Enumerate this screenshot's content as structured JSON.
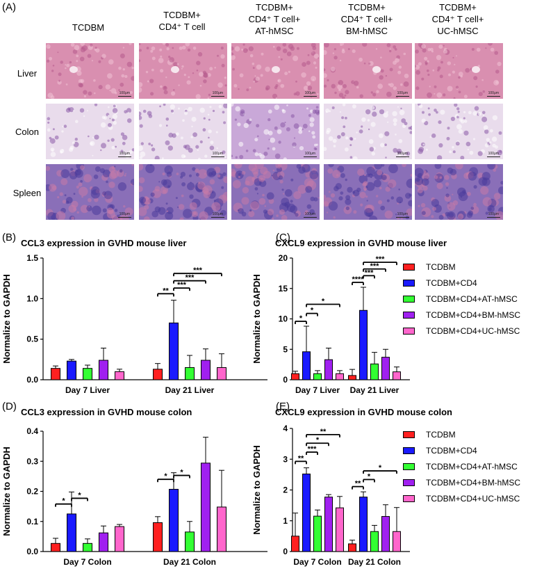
{
  "panel_labels": {
    "A": "(A)",
    "B": "(B)",
    "C": "(C)",
    "D": "(D)",
    "E": "(E)"
  },
  "histology": {
    "columns": [
      "TCDBM",
      "TCDBM+\nCD4⁺ T cell",
      "TCDBM+\nCD4⁺ T cell+\nAT-hMSC",
      "TCDBM+\nCD4⁺ T cell+\nBM-hMSC",
      "TCDBM+\nCD4⁺ T cell+\nUC-hMSC"
    ],
    "rows": [
      "Liver",
      "Colon",
      "Spleen"
    ],
    "scale_label": "100μm"
  },
  "colors": {
    "TCDBM": "#ff2020",
    "TCDBM+CD4": "#1a1aff",
    "TCDBM+CD4+AT-hMSC": "#33ff33",
    "TCDBM+CD4+BM-hMSC": "#a020f0",
    "TCDBM+CD4+UC-hMSC": "#ff66cc",
    "liver_tissue": "#d98fb0",
    "colon_tissue": "#c9a8d8",
    "spleen_tissue": "#8a6fb8"
  },
  "legend": [
    "TCDBM",
    "TCDBM+CD4",
    "TCDBM+CD4+AT-hMSC",
    "TCDBM+CD4+BM-hMSC",
    "TCDBM+CD4+UC-hMSC"
  ],
  "chart_data": [
    {
      "id": "B",
      "type": "bar",
      "title": "CCL3 expression in GVHD mouse liver",
      "ylabel": "Normalize to GAPDH",
      "ylim": [
        0,
        1.5
      ],
      "yticks": [
        "0.0",
        "0.5",
        "1.0",
        "1.5"
      ],
      "categories": [
        "Day 7 Liver",
        "Day 21 Liver"
      ],
      "series": [
        {
          "name": "TCDBM",
          "values": [
            0.14,
            0.13
          ],
          "errors": [
            0.03,
            0.07
          ]
        },
        {
          "name": "TCDBM+CD4",
          "values": [
            0.23,
            0.7
          ],
          "errors": [
            0.02,
            0.28
          ]
        },
        {
          "name": "TCDBM+CD4+AT-hMSC",
          "values": [
            0.14,
            0.15
          ],
          "errors": [
            0.04,
            0.15
          ]
        },
        {
          "name": "TCDBM+CD4+BM-hMSC",
          "values": [
            0.24,
            0.24
          ],
          "errors": [
            0.15,
            0.14
          ]
        },
        {
          "name": "TCDBM+CD4+UC-hMSC",
          "values": [
            0.1,
            0.15
          ],
          "errors": [
            0.03,
            0.17
          ]
        }
      ],
      "annotations": [
        {
          "group": 1,
          "from": 0,
          "to": 1,
          "text": "**",
          "level": 1.06
        },
        {
          "group": 1,
          "from": 1,
          "to": 2,
          "text": "***",
          "level": 1.13
        },
        {
          "group": 1,
          "from": 1,
          "to": 3,
          "text": "***",
          "level": 1.22
        },
        {
          "group": 1,
          "from": 1,
          "to": 4,
          "text": "***",
          "level": 1.31
        }
      ]
    },
    {
      "id": "C",
      "type": "bar",
      "title": "CXCL9 expression in GVHD mouse liver",
      "ylabel": "Normalize to GAPDH",
      "ylim": [
        0,
        20
      ],
      "yticks": [
        "0",
        "5",
        "10",
        "15",
        "20"
      ],
      "categories": [
        "Day 7 Liver",
        "Day 21 Liver"
      ],
      "series": [
        {
          "name": "TCDBM",
          "values": [
            1.0,
            0.7
          ],
          "errors": [
            0.4,
            1.0
          ]
        },
        {
          "name": "TCDBM+CD4",
          "values": [
            4.6,
            11.4
          ],
          "errors": [
            4.2,
            3.8
          ]
        },
        {
          "name": "TCDBM+CD4+AT-hMSC",
          "values": [
            1.0,
            2.6
          ],
          "errors": [
            0.5,
            1.9
          ]
        },
        {
          "name": "TCDBM+CD4+BM-hMSC",
          "values": [
            3.3,
            3.7
          ],
          "errors": [
            1.9,
            1.3
          ]
        },
        {
          "name": "TCDBM+CD4+UC-hMSC",
          "values": [
            1.0,
            1.3
          ],
          "errors": [
            0.5,
            0.8
          ]
        }
      ],
      "annotations": [
        {
          "group": 0,
          "from": 0,
          "to": 1,
          "text": "*",
          "level": 9.6
        },
        {
          "group": 0,
          "from": 1,
          "to": 2,
          "text": "*",
          "level": 10.9
        },
        {
          "group": 0,
          "from": 1,
          "to": 4,
          "text": "*",
          "level": 12.4
        },
        {
          "group": 1,
          "from": 0,
          "to": 1,
          "text": "****",
          "level": 16.0
        },
        {
          "group": 1,
          "from": 1,
          "to": 2,
          "text": "***",
          "level": 17.1
        },
        {
          "group": 1,
          "from": 1,
          "to": 3,
          "text": "***",
          "level": 18.2
        },
        {
          "group": 1,
          "from": 1,
          "to": 4,
          "text": "***",
          "level": 19.3
        }
      ]
    },
    {
      "id": "D",
      "type": "bar",
      "title": "CCL3 expression in GVHD mouse colon",
      "ylabel": "Normalize to GAPDH",
      "ylim": [
        0,
        0.4
      ],
      "yticks": [
        "0.0",
        "0.1",
        "0.2",
        "0.3",
        "0.4"
      ],
      "categories": [
        "Day 7 Colon",
        "Day 21 Colon"
      ],
      "series": [
        {
          "name": "TCDBM",
          "values": [
            0.027,
            0.096
          ],
          "errors": [
            0.017,
            0.02
          ]
        },
        {
          "name": "TCDBM+CD4",
          "values": [
            0.125,
            0.207
          ],
          "errors": [
            0.073,
            0.055
          ]
        },
        {
          "name": "TCDBM+CD4+AT-hMSC",
          "values": [
            0.027,
            0.065
          ],
          "errors": [
            0.015,
            0.035
          ]
        },
        {
          "name": "TCDBM+CD4+BM-hMSC",
          "values": [
            0.062,
            0.294
          ],
          "errors": [
            0.023,
            0.086
          ]
        },
        {
          "name": "TCDBM+CD4+UC-hMSC",
          "values": [
            0.083,
            0.148
          ],
          "errors": [
            0.007,
            0.122
          ]
        }
      ],
      "annotations": [
        {
          "group": 0,
          "from": 0,
          "to": 1,
          "text": "*",
          "level": 0.158
        },
        {
          "group": 0,
          "from": 1,
          "to": 2,
          "text": "*",
          "level": 0.177
        },
        {
          "group": 1,
          "from": 0,
          "to": 1,
          "text": "*",
          "level": 0.24
        },
        {
          "group": 1,
          "from": 1,
          "to": 2,
          "text": "*",
          "level": 0.253
        }
      ]
    },
    {
      "id": "E",
      "type": "bar",
      "title": "CXCL9 expression in GVHD mouse colon",
      "ylabel": "Normalize to GAPDH",
      "ylim": [
        0,
        4
      ],
      "yticks": [
        "0",
        "1",
        "2",
        "3",
        "4"
      ],
      "categories": [
        "Day 7 Colon",
        "Day 21 Colon"
      ],
      "series": [
        {
          "name": "TCDBM",
          "values": [
            0.5,
            0.25
          ],
          "errors": [
            0.75,
            0.12
          ]
        },
        {
          "name": "TCDBM+CD4",
          "values": [
            2.52,
            1.77
          ],
          "errors": [
            0.2,
            0.17
          ]
        },
        {
          "name": "TCDBM+CD4+AT-hMSC",
          "values": [
            1.15,
            0.65
          ],
          "errors": [
            0.2,
            0.2
          ]
        },
        {
          "name": "TCDBM+CD4+BM-hMSC",
          "values": [
            1.77,
            1.14
          ],
          "errors": [
            0.08,
            0.38
          ]
        },
        {
          "name": "TCDBM+CD4+UC-hMSC",
          "values": [
            1.42,
            0.65
          ],
          "errors": [
            0.37,
            0.78
          ]
        }
      ],
      "annotations": [
        {
          "group": 0,
          "from": 0,
          "to": 1,
          "text": "**",
          "level": 2.93
        },
        {
          "group": 0,
          "from": 1,
          "to": 2,
          "text": "***",
          "level": 3.23
        },
        {
          "group": 0,
          "from": 1,
          "to": 3,
          "text": "*",
          "level": 3.52
        },
        {
          "group": 0,
          "from": 1,
          "to": 4,
          "text": "**",
          "level": 3.8
        },
        {
          "group": 1,
          "from": 0,
          "to": 1,
          "text": "**",
          "level": 2.11
        },
        {
          "group": 1,
          "from": 1,
          "to": 2,
          "text": "*",
          "level": 2.34
        },
        {
          "group": 1,
          "from": 1,
          "to": 4,
          "text": "*",
          "level": 2.62
        }
      ]
    }
  ]
}
